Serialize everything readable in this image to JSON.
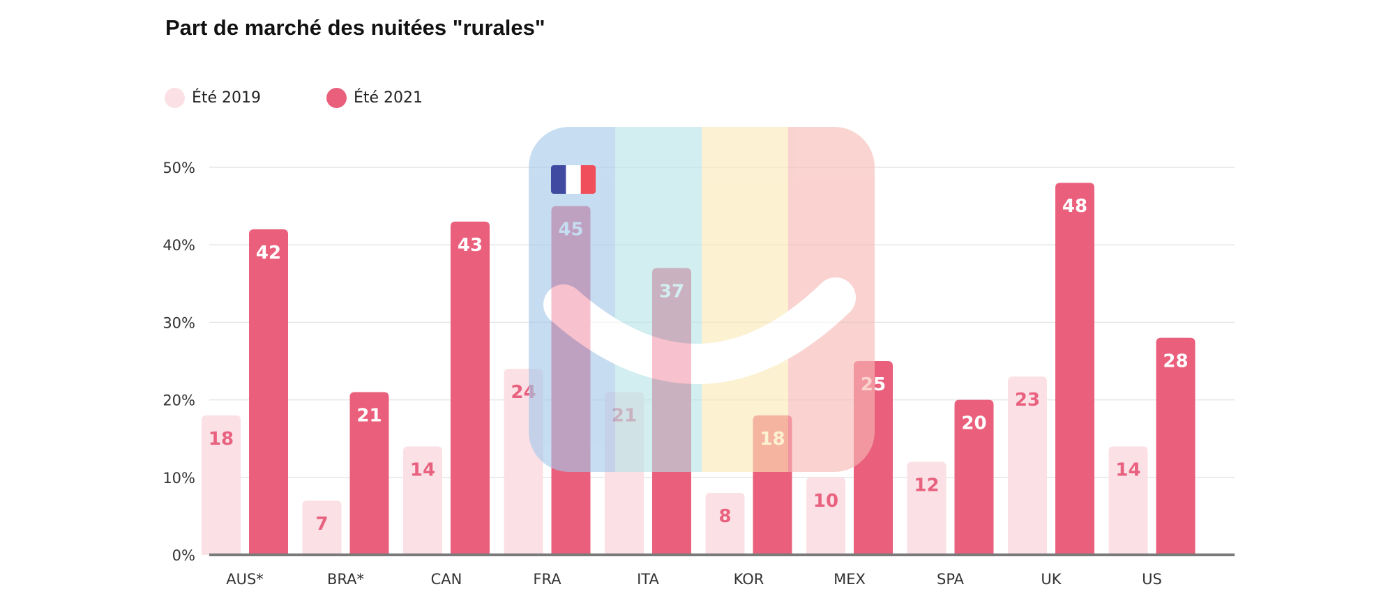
{
  "chart_data": {
    "type": "bar",
    "title": "Part de marché des nuitées \"rurales\"",
    "xlabel": "",
    "ylabel": "",
    "categories": [
      "AUS*",
      "BRA*",
      "CAN",
      "FRA",
      "ITA",
      "KOR",
      "MEX",
      "SPA",
      "UK",
      "US"
    ],
    "series": [
      {
        "name": "Été 2019",
        "color": "#fbe0e5",
        "label_color": "#e8627f",
        "values": [
          18,
          7,
          14,
          24,
          21,
          8,
          10,
          12,
          23,
          14
        ]
      },
      {
        "name": "Été 2021",
        "color": "#ea5f7c",
        "label_color": "#ffffff",
        "values": [
          42,
          21,
          43,
          45,
          37,
          18,
          25,
          20,
          48,
          28
        ]
      }
    ],
    "ylim": [
      0,
      50
    ],
    "yticks": [
      0,
      10,
      20,
      30,
      40,
      50
    ],
    "ytick_labels": [
      "0%",
      "10%",
      "20%",
      "30%",
      "40%",
      "50%"
    ],
    "grid": true,
    "legend_position": "top-left",
    "data_labels": true
  },
  "overlay": {
    "logo_icon": "smiley-logo-icon",
    "flag_icon": "france-flag-icon",
    "colors": [
      "#a4c8ea",
      "#b7e4e8",
      "#fbe9b6",
      "#f7b9b5"
    ],
    "flag_colors": [
      "#3f4aa0",
      "#ffffff",
      "#f04e5a"
    ]
  }
}
